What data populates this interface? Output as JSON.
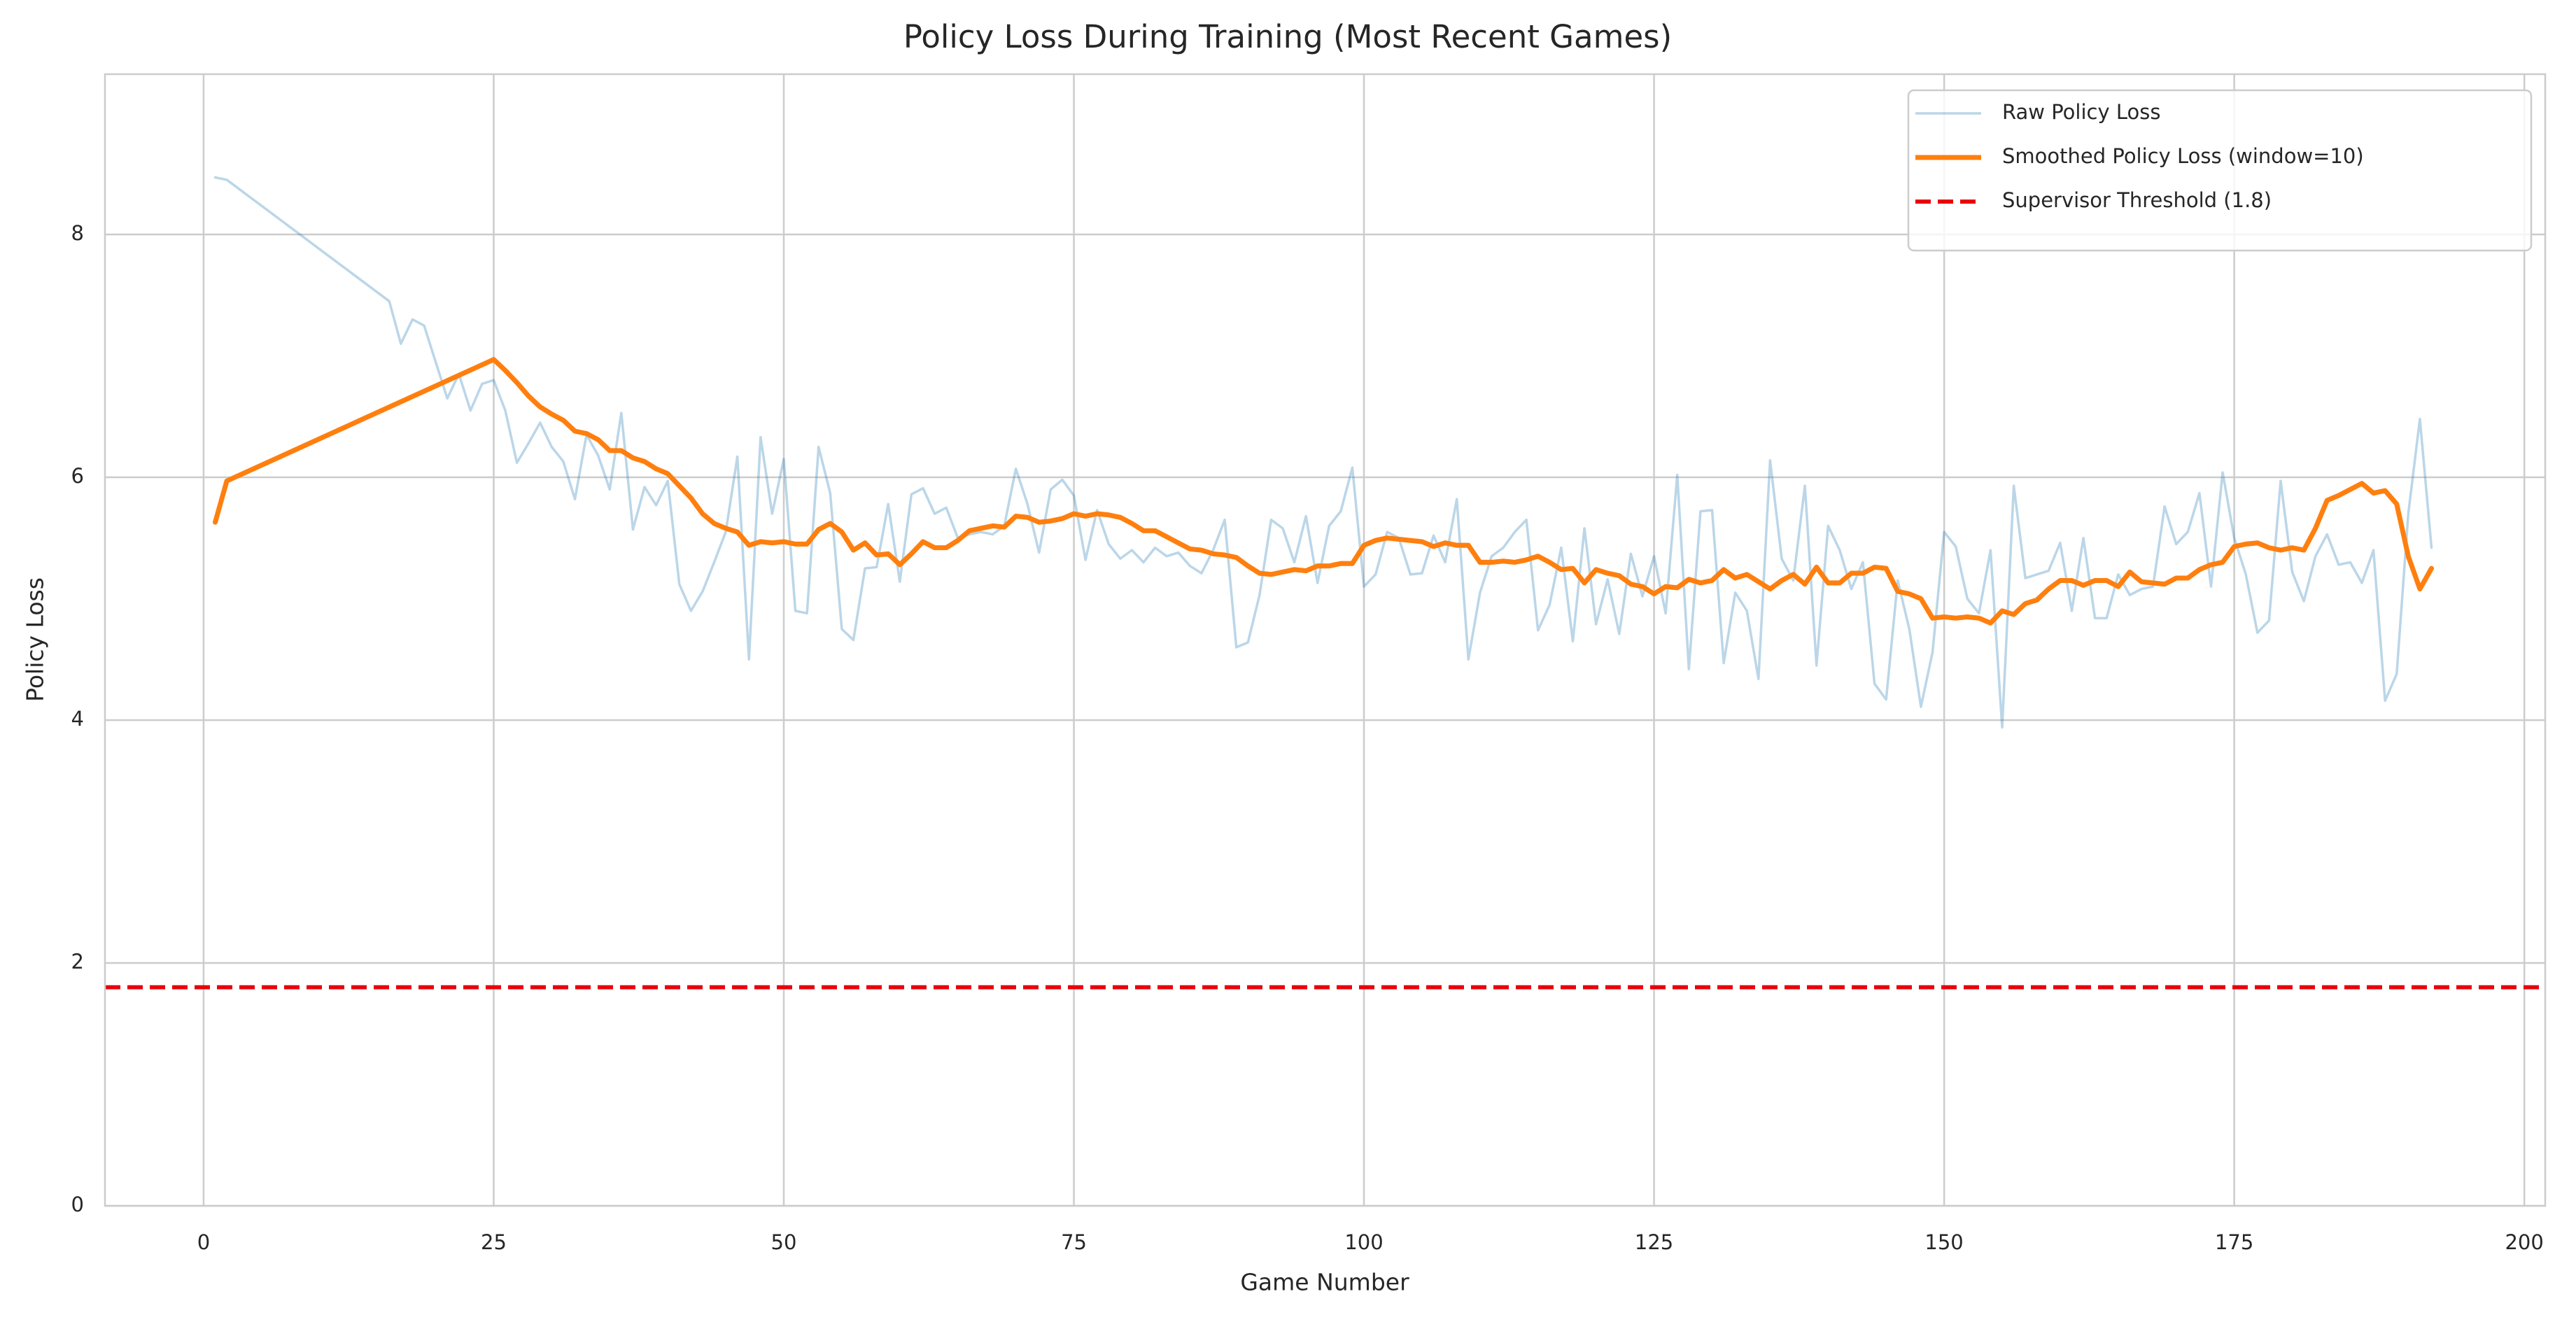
{
  "chart_data": {
    "type": "line",
    "title": "Policy Loss During Training (Most Recent Games)",
    "xlabel": "Game Number",
    "ylabel": "Policy Loss",
    "xlim": [
      -8.5,
      201.8
    ],
    "ylim": [
      0,
      9.32
    ],
    "xticks": [
      0,
      25,
      50,
      75,
      100,
      125,
      150,
      175,
      200
    ],
    "yticks": [
      0,
      2,
      4,
      6,
      8
    ],
    "grid": true,
    "legend": "upper right",
    "series": [
      {
        "name": "Raw Policy Loss",
        "color": "#1f77b4",
        "alpha": 0.3,
        "width": 1.5,
        "x": [
          1,
          2,
          16,
          17,
          18,
          19,
          20,
          21,
          22,
          23,
          24,
          25,
          26,
          27,
          28,
          29,
          30,
          31,
          32,
          33,
          34,
          35,
          36,
          37,
          38,
          39,
          40,
          41,
          42,
          43,
          44,
          45,
          46,
          47,
          48,
          49,
          50,
          51,
          52,
          53,
          54,
          55,
          56,
          57,
          58,
          59,
          60,
          61,
          62,
          63,
          64,
          65,
          66,
          67,
          68,
          69,
          70,
          71,
          72,
          73,
          74,
          75,
          76,
          77,
          78,
          79,
          80,
          81,
          82,
          83,
          84,
          85,
          86,
          87,
          88,
          89,
          90,
          91,
          92,
          93,
          94,
          95,
          96,
          97,
          98,
          99,
          100,
          101,
          102,
          103,
          104,
          105,
          106,
          107,
          108,
          109,
          110,
          111,
          112,
          113,
          114,
          115,
          116,
          117,
          118,
          119,
          120,
          121,
          122,
          123,
          124,
          125,
          126,
          127,
          128,
          129,
          130,
          131,
          132,
          133,
          134,
          135,
          136,
          137,
          138,
          139,
          140,
          141,
          142,
          143,
          144,
          145,
          146,
          147,
          148,
          149,
          150,
          151,
          152,
          153,
          154,
          155,
          156,
          157,
          158,
          159,
          160,
          161,
          162,
          163,
          164,
          165,
          166,
          167,
          168,
          169,
          170,
          171,
          172,
          173,
          174,
          175,
          176,
          177,
          178,
          179,
          180,
          181,
          182,
          183,
          184,
          185,
          186,
          187,
          188,
          189,
          190,
          191,
          192
        ],
        "values": [
          8.47,
          8.45,
          7.45,
          7.1,
          7.3,
          7.25,
          6.95,
          6.65,
          6.85,
          6.55,
          6.77,
          6.8,
          6.55,
          6.12,
          6.28,
          6.45,
          6.25,
          6.13,
          5.82,
          6.35,
          6.18,
          5.9,
          6.53,
          5.57,
          5.92,
          5.77,
          5.97,
          5.12,
          4.9,
          5.06,
          5.3,
          5.55,
          6.17,
          4.5,
          6.33,
          5.7,
          6.15,
          4.9,
          4.88,
          6.25,
          5.87,
          4.75,
          4.66,
          5.25,
          5.26,
          5.78,
          5.14,
          5.86,
          5.91,
          5.7,
          5.75,
          5.5,
          5.53,
          5.55,
          5.53,
          5.6,
          6.07,
          5.78,
          5.38,
          5.9,
          5.98,
          5.85,
          5.32,
          5.73,
          5.45,
          5.33,
          5.4,
          5.3,
          5.42,
          5.35,
          5.38,
          5.27,
          5.21,
          5.4,
          5.65,
          4.6,
          4.64,
          5.03,
          5.65,
          5.58,
          5.3,
          5.68,
          5.13,
          5.6,
          5.72,
          6.08,
          5.1,
          5.2,
          5.55,
          5.5,
          5.2,
          5.21,
          5.52,
          5.3,
          5.82,
          4.5,
          5.05,
          5.35,
          5.42,
          5.55,
          5.65,
          4.74,
          4.95,
          5.42,
          4.65,
          5.58,
          4.79,
          5.16,
          4.71,
          5.37,
          5.02,
          5.35,
          4.88,
          6.02,
          4.42,
          5.72,
          5.73,
          4.47,
          5.05,
          4.9,
          4.34,
          6.14,
          5.33,
          5.15,
          5.93,
          4.45,
          5.6,
          5.4,
          5.08,
          5.3,
          4.3,
          4.17,
          5.15,
          4.75,
          4.11,
          4.56,
          5.55,
          5.43,
          5.0,
          4.88,
          5.4,
          3.94,
          5.93,
          5.17,
          5.2,
          5.23,
          5.46,
          4.9,
          5.5,
          4.84,
          4.84,
          5.2,
          5.03,
          5.08,
          5.1,
          5.76,
          5.45,
          5.55,
          5.87,
          5.1,
          6.04,
          5.5,
          5.2,
          4.72,
          4.82,
          5.97,
          5.22,
          4.98,
          5.35,
          5.53,
          5.28,
          5.3,
          5.13,
          5.4,
          4.16,
          4.38,
          5.7,
          6.48,
          5.42
        ]
      },
      {
        "name": "Smoothed Policy Loss (window=10)",
        "color": "#ff7f0e",
        "alpha": 1,
        "width": 3,
        "x": [
          1,
          2,
          25,
          26,
          27,
          28,
          29,
          30,
          31,
          32,
          33,
          34,
          35,
          36,
          37,
          38,
          39,
          40,
          41,
          42,
          43,
          44,
          45,
          46,
          47,
          48,
          49,
          50,
          51,
          52,
          53,
          54,
          55,
          56,
          57,
          58,
          59,
          60,
          61,
          62,
          63,
          64,
          65,
          66,
          67,
          68,
          69,
          70,
          71,
          72,
          73,
          74,
          75,
          76,
          77,
          78,
          79,
          80,
          81,
          82,
          83,
          84,
          85,
          86,
          87,
          88,
          89,
          90,
          91,
          92,
          93,
          94,
          95,
          96,
          97,
          98,
          99,
          100,
          101,
          102,
          103,
          104,
          105,
          106,
          107,
          108,
          109,
          110,
          111,
          112,
          113,
          114,
          115,
          116,
          117,
          118,
          119,
          120,
          121,
          122,
          123,
          124,
          125,
          126,
          127,
          128,
          129,
          130,
          131,
          132,
          133,
          134,
          135,
          136,
          137,
          138,
          139,
          140,
          141,
          142,
          143,
          144,
          145,
          146,
          147,
          148,
          149,
          150,
          151,
          152,
          153,
          154,
          155,
          156,
          157,
          158,
          159,
          160,
          161,
          162,
          163,
          164,
          165,
          166,
          167,
          168,
          169,
          170,
          171,
          172,
          173,
          174,
          175,
          176,
          177,
          178,
          179,
          180,
          181,
          182,
          183,
          184,
          185,
          186,
          187,
          188,
          189,
          190,
          191,
          192
        ],
        "values": [
          5.63,
          5.97,
          6.97,
          6.88,
          6.78,
          6.67,
          6.58,
          6.52,
          6.47,
          6.38,
          6.36,
          6.31,
          6.22,
          6.22,
          6.16,
          6.13,
          6.07,
          6.03,
          5.93,
          5.83,
          5.7,
          5.62,
          5.58,
          5.55,
          5.44,
          5.47,
          5.46,
          5.47,
          5.45,
          5.45,
          5.57,
          5.62,
          5.55,
          5.4,
          5.46,
          5.36,
          5.37,
          5.28,
          5.37,
          5.47,
          5.42,
          5.42,
          5.48,
          5.56,
          5.58,
          5.6,
          5.59,
          5.68,
          5.67,
          5.63,
          5.64,
          5.66,
          5.7,
          5.68,
          5.7,
          5.69,
          5.67,
          5.62,
          5.56,
          5.56,
          5.51,
          5.46,
          5.41,
          5.4,
          5.37,
          5.36,
          5.34,
          5.27,
          5.21,
          5.2,
          5.22,
          5.24,
          5.23,
          5.27,
          5.27,
          5.29,
          5.29,
          5.44,
          5.48,
          5.5,
          5.49,
          5.48,
          5.47,
          5.43,
          5.46,
          5.44,
          5.44,
          5.3,
          5.3,
          5.31,
          5.3,
          5.32,
          5.35,
          5.3,
          5.24,
          5.25,
          5.13,
          5.24,
          5.21,
          5.19,
          5.12,
          5.1,
          5.04,
          5.1,
          5.09,
          5.16,
          5.13,
          5.15,
          5.24,
          5.17,
          5.2,
          5.14,
          5.08,
          5.15,
          5.2,
          5.12,
          5.26,
          5.13,
          5.13,
          5.21,
          5.21,
          5.26,
          5.25,
          5.06,
          5.04,
          5.0,
          4.84,
          4.85,
          4.84,
          4.85,
          4.84,
          4.8,
          4.9,
          4.87,
          4.96,
          4.99,
          5.08,
          5.15,
          5.15,
          5.11,
          5.15,
          5.15,
          5.1,
          5.22,
          5.14,
          5.13,
          5.12,
          5.17,
          5.17,
          5.24,
          5.28,
          5.3,
          5.43,
          5.45,
          5.46,
          5.42,
          5.4,
          5.42,
          5.4,
          5.58,
          5.81,
          5.85,
          5.9,
          5.95,
          5.87,
          5.89,
          5.78,
          5.35,
          5.08,
          5.25
        ]
      }
    ],
    "hlines": [
      {
        "name": "Supervisor Threshold (1.8)",
        "value": 1.8,
        "color": "#e8000b",
        "dashed": true,
        "width": 2.5
      }
    ]
  }
}
